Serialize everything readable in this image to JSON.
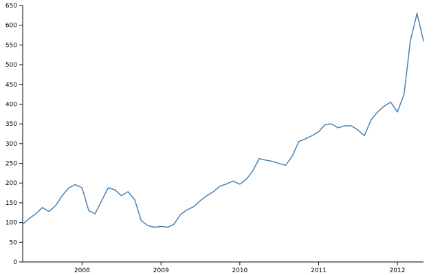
{
  "chart_data": {
    "type": "line",
    "title": "",
    "xlabel": "",
    "ylabel": "",
    "ylim": [
      0,
      650
    ],
    "xlim": [
      "2007-04-01",
      "2012-05-01"
    ],
    "grid": false,
    "x_ticks": [
      "2008",
      "2009",
      "2010",
      "2011",
      "2012"
    ],
    "y_ticks": [
      "0",
      "50",
      "100",
      "150",
      "200",
      "250",
      "300",
      "350",
      "400",
      "450",
      "500",
      "550",
      "600",
      "650"
    ],
    "series": [
      {
        "color": "#4682b4",
        "x": [
          "2007-04-01",
          "2007-05-01",
          "2007-06-01",
          "2007-07-01",
          "2007-08-01",
          "2007-09-01",
          "2007-10-01",
          "2007-11-01",
          "2007-12-01",
          "2008-01-01",
          "2008-02-01",
          "2008-03-01",
          "2008-04-01",
          "2008-05-01",
          "2008-06-01",
          "2008-07-01",
          "2008-08-01",
          "2008-09-01",
          "2008-10-01",
          "2008-11-01",
          "2008-12-01",
          "2009-01-01",
          "2009-02-01",
          "2009-03-01",
          "2009-04-01",
          "2009-05-01",
          "2009-06-01",
          "2009-07-01",
          "2009-08-01",
          "2009-09-01",
          "2009-10-01",
          "2009-11-01",
          "2009-12-01",
          "2010-01-01",
          "2010-02-01",
          "2010-03-01",
          "2010-04-01",
          "2010-05-01",
          "2010-06-01",
          "2010-07-01",
          "2010-08-01",
          "2010-09-01",
          "2010-10-01",
          "2010-11-01",
          "2010-12-01",
          "2011-01-01",
          "2011-02-01",
          "2011-03-01",
          "2011-04-01",
          "2011-05-01",
          "2011-06-01",
          "2011-07-01",
          "2011-08-01",
          "2011-09-01",
          "2011-10-01",
          "2011-11-01",
          "2011-12-01",
          "2012-01-01",
          "2012-02-01",
          "2012-03-01",
          "2012-04-01",
          "2012-05-01"
        ],
        "y": [
          95,
          110,
          122,
          138,
          128,
          143,
          168,
          188,
          196,
          188,
          130,
          122,
          155,
          188,
          183,
          168,
          178,
          158,
          105,
          92,
          88,
          90,
          88,
          95,
          120,
          132,
          140,
          155,
          168,
          178,
          192,
          198,
          205,
          197,
          210,
          230,
          262,
          258,
          255,
          250,
          245,
          268,
          305,
          312,
          320,
          330,
          348,
          350,
          340,
          345,
          345,
          335,
          320,
          360,
          380,
          395,
          405,
          380,
          425,
          560,
          630,
          560
        ]
      }
    ]
  }
}
